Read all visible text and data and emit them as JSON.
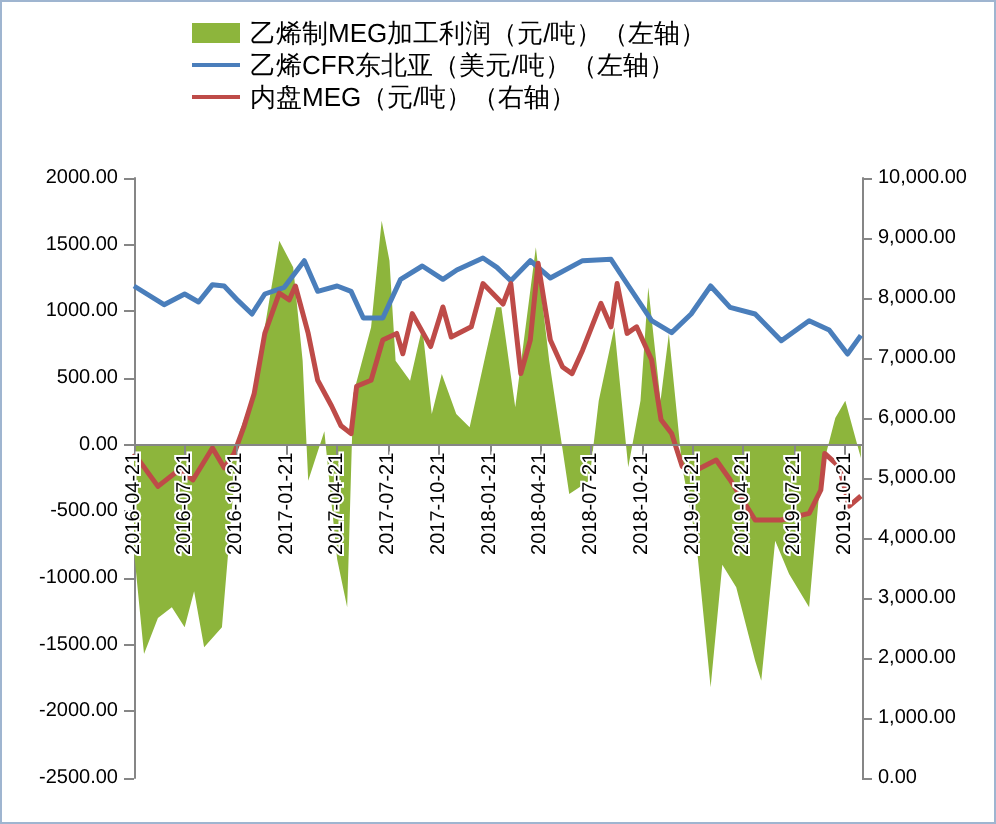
{
  "chart_data": {
    "type": "line",
    "xlim": [
      "2016-04-21",
      "2019-11-20"
    ],
    "xticks": [
      "2016-04-21",
      "2016-07-21",
      "2016-10-21",
      "2017-01-21",
      "2017-04-21",
      "2017-07-21",
      "2017-10-21",
      "2018-01-21",
      "2018-04-21",
      "2018-07-21",
      "2018-10-21",
      "2019-01-21",
      "2019-04-21",
      "2019-07-21",
      "2019-10-21"
    ],
    "ylim": [
      -2500,
      2000
    ],
    "yticks": [
      {
        "value": 2000,
        "label": "2000.00"
      },
      {
        "value": 1500,
        "label": "1500.00"
      },
      {
        "value": 1000,
        "label": "1000.00"
      },
      {
        "value": 500,
        "label": "500.00"
      },
      {
        "value": 0,
        "label": "0.00"
      },
      {
        "value": -500,
        "label": "-500.00"
      },
      {
        "value": -1000,
        "label": "-1000.00"
      },
      {
        "value": -1500,
        "label": "-1500.00"
      },
      {
        "value": -2000,
        "label": "-2000.00"
      },
      {
        "value": -2500,
        "label": "-2500.00"
      }
    ],
    "y2lim": [
      0,
      10000
    ],
    "y2ticks": [
      {
        "value": 10000,
        "label": "10,000.00"
      },
      {
        "value": 9000,
        "label": "9,000.00"
      },
      {
        "value": 8000,
        "label": "8,000.00"
      },
      {
        "value": 7000,
        "label": "7,000.00"
      },
      {
        "value": 6000,
        "label": "6,000.00"
      },
      {
        "value": 5000,
        "label": "5,000.00"
      },
      {
        "value": 4000,
        "label": "4,000.00"
      },
      {
        "value": 3000,
        "label": "3,000.00"
      },
      {
        "value": 2000,
        "label": "2,000.00"
      },
      {
        "value": 1000,
        "label": "1,000.00"
      },
      {
        "value": 0,
        "label": "0.00"
      }
    ],
    "grid": false,
    "legend": "top",
    "marker": "none",
    "line_style": "solid",
    "series": [
      {
        "name": "乙烯制MEG加工利润（元/吨）（左轴）",
        "type": "area",
        "color": "#8db53c",
        "x": [
          "2016-04-21",
          "2016-05-09",
          "2016-06-03",
          "2016-06-28",
          "2016-07-21",
          "2016-08-07",
          "2016-08-25",
          "2016-09-26",
          "2016-10-14",
          "2016-10-28",
          "2016-11-21",
          "2016-12-12",
          "2017-01-07",
          "2017-02-01",
          "2017-02-18",
          "2017-02-28",
          "2017-03-29",
          "2017-04-21",
          "2017-05-09",
          "2017-05-20",
          "2017-06-21",
          "2017-07-10",
          "2017-07-24",
          "2017-08-04",
          "2017-08-30",
          "2017-09-21",
          "2017-10-08",
          "2017-10-26",
          "2017-11-21",
          "2017-12-15",
          "2018-01-13",
          "2018-02-01",
          "2018-02-10",
          "2018-03-07",
          "2018-04-13",
          "2018-05-07",
          "2018-05-25",
          "2018-06-12",
          "2018-07-18",
          "2018-08-04",
          "2018-09-01",
          "2018-09-26",
          "2018-10-18",
          "2018-11-01",
          "2018-11-23",
          "2018-12-08",
          "2019-01-01",
          "2019-01-26",
          "2019-02-21",
          "2019-03-14",
          "2019-04-08",
          "2019-05-12",
          "2019-05-23",
          "2019-06-17",
          "2019-07-12",
          "2019-08-17",
          "2019-09-07",
          "2019-10-03",
          "2019-10-21",
          "2019-11-18"
        ],
        "values": [
          -800,
          -1570,
          -1300,
          -1220,
          -1370,
          -1100,
          -1520,
          -1370,
          -470,
          100,
          380,
          880,
          1530,
          1330,
          630,
          -270,
          100,
          -860,
          -1220,
          380,
          880,
          1680,
          1380,
          630,
          480,
          880,
          230,
          530,
          230,
          130,
          680,
          1030,
          1030,
          280,
          1480,
          630,
          130,
          -370,
          -270,
          330,
          880,
          -170,
          330,
          1180,
          330,
          830,
          -170,
          -720,
          -1820,
          -900,
          -1070,
          -1620,
          -1770,
          -720,
          -970,
          -1220,
          -220,
          200,
          330,
          -100
        ]
      },
      {
        "name": "乙烯CFR东北亚（美元/吨）（左轴）",
        "color": "#4a7ebb",
        "x": [
          "2016-04-21",
          "2016-06-14",
          "2016-07-21",
          "2016-08-15",
          "2016-09-09",
          "2016-09-30",
          "2016-10-25",
          "2016-11-19",
          "2016-12-12",
          "2017-01-16",
          "2017-02-21",
          "2017-03-17",
          "2017-04-21",
          "2017-05-16",
          "2017-06-07",
          "2017-07-12",
          "2017-08-13",
          "2017-09-21",
          "2017-10-28",
          "2017-11-22",
          "2018-01-08",
          "2018-02-02",
          "2018-02-27",
          "2018-04-03",
          "2018-05-09",
          "2018-07-06",
          "2018-08-26",
          "2018-09-17",
          "2018-11-07",
          "2018-12-13",
          "2019-01-17",
          "2019-02-21",
          "2019-03-28",
          "2019-05-12",
          "2019-06-28",
          "2019-08-17",
          "2019-09-22",
          "2019-10-25",
          "2019-11-18"
        ],
        "values": [
          1190,
          1050,
          1130,
          1070,
          1200,
          1190,
          1080,
          980,
          1130,
          1180,
          1380,
          1150,
          1190,
          1150,
          950,
          950,
          1240,
          1340,
          1240,
          1310,
          1400,
          1330,
          1230,
          1380,
          1250,
          1380,
          1390,
          1250,
          930,
          840,
          980,
          1190,
          1030,
          980,
          780,
          930,
          860,
          680,
          820
        ]
      },
      {
        "name": "内盘MEG（元/吨）（右轴）",
        "type": "line",
        "axis": "y2",
        "color": "#be4b48",
        "x": [
          "2016-04-21",
          "2016-06-03",
          "2016-07-10",
          "2016-08-05",
          "2016-09-09",
          "2016-09-30",
          "2016-10-18",
          "2016-11-05",
          "2016-11-23",
          "2016-12-12",
          "2017-01-07",
          "2017-01-25",
          "2017-02-05",
          "2017-02-28",
          "2017-03-17",
          "2017-04-11",
          "2017-04-28",
          "2017-05-16",
          "2017-05-26",
          "2017-06-21",
          "2017-07-12",
          "2017-08-06",
          "2017-08-17",
          "2017-09-03",
          "2017-10-06",
          "2017-10-28",
          "2017-11-12",
          "2017-12-18",
          "2018-01-08",
          "2018-02-13",
          "2018-02-27",
          "2018-03-17",
          "2018-04-03",
          "2018-04-17",
          "2018-05-09",
          "2018-05-31",
          "2018-06-17",
          "2018-07-06",
          "2018-08-08",
          "2018-08-26",
          "2018-09-06",
          "2018-09-24",
          "2018-10-11",
          "2018-11-07",
          "2018-11-24",
          "2018-12-13",
          "2019-01-01",
          "2019-01-26",
          "2019-03-03",
          "2019-03-28",
          "2019-05-12",
          "2019-06-28",
          "2019-08-17",
          "2019-09-07",
          "2019-09-14",
          "2019-10-10",
          "2019-10-28",
          "2019-11-18"
        ],
        "values": [
          5410,
          4860,
          5130,
          4970,
          5500,
          5170,
          5410,
          5870,
          6410,
          7410,
          8080,
          7970,
          8200,
          7410,
          6630,
          6200,
          5870,
          5740,
          6530,
          6630,
          7300,
          7410,
          7070,
          7740,
          7190,
          7850,
          7350,
          7520,
          8240,
          7900,
          8240,
          6740,
          7300,
          8580,
          7300,
          6850,
          6740,
          7130,
          7910,
          7520,
          8240,
          7410,
          7520,
          6970,
          5970,
          5740,
          5190,
          5130,
          5300,
          4970,
          4300,
          4300,
          4410,
          4800,
          5410,
          5190,
          4530,
          4700
        ]
      }
    ]
  }
}
